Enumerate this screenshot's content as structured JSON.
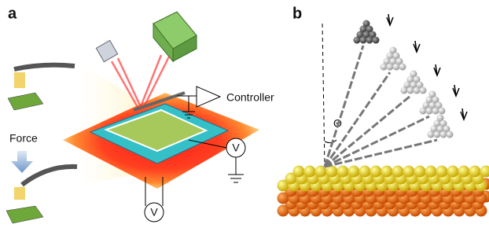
{
  "panel_a": {
    "label": "a",
    "force": "Force",
    "controller": "Controller",
    "voltmeter_1": "V",
    "voltmeter_2": "V"
  },
  "panel_b": {
    "label": "b",
    "angle": "Θ"
  }
}
